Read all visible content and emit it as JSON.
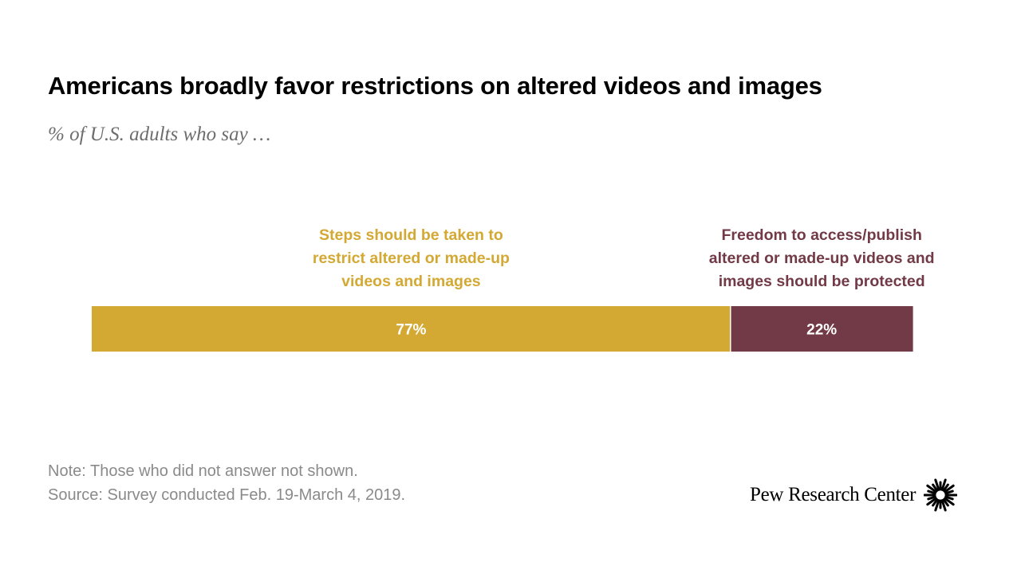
{
  "title": "Americans broadly favor restrictions on altered videos and images",
  "subtitle": "% of U.S. adults who say …",
  "chart_data": {
    "type": "bar",
    "orientation": "horizontal-stacked",
    "categories": [
      ""
    ],
    "series": [
      {
        "name": "Steps should be taken to\nrestrict altered or made-up\nvideos and images",
        "values": [
          77
        ],
        "label": "77%",
        "color": "#D3A933"
      },
      {
        "name": "Freedom to access/publish\naltered or made-up videos and\nimages should be protected",
        "values": [
          22
        ],
        "label": "22%",
        "color": "#723A46"
      }
    ],
    "xlim": [
      0,
      100
    ],
    "grid": false,
    "legend": "above bars"
  },
  "notes": {
    "note": "Note: Those who did not answer not shown.",
    "source": "Source: Survey conducted Feb. 19-March 4, 2019."
  },
  "logo": {
    "text": "Pew Research Center",
    "icon": "pew-sunburst-icon"
  }
}
